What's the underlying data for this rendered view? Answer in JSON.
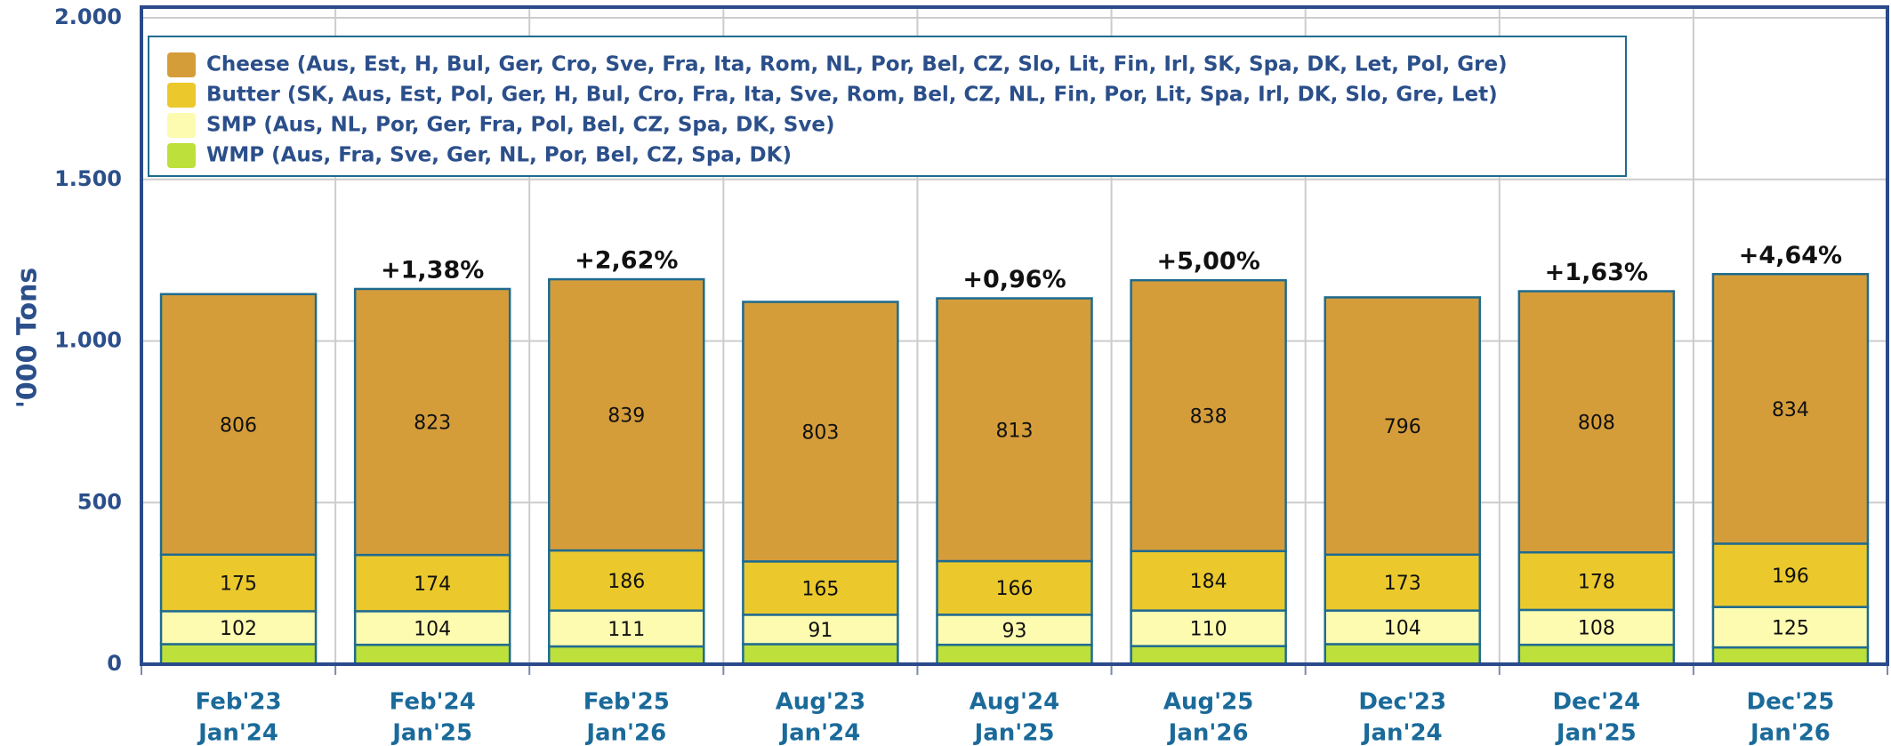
{
  "chart_data": {
    "type": "stacked_bar",
    "y_label": "'000 Tons",
    "categories": [
      [
        "Feb'23",
        "Jan'24"
      ],
      [
        "Feb'24",
        "Jan'25"
      ],
      [
        "Feb'25",
        "Jan'26"
      ],
      [
        "Aug'23",
        "Jan'24"
      ],
      [
        "Aug'24",
        "Jan'25"
      ],
      [
        "Aug'25",
        "Jan'26"
      ],
      [
        "Dec'23",
        "Jan'24"
      ],
      [
        "Dec'24",
        "Jan'25"
      ],
      [
        "Dec'25",
        "Jan'26"
      ]
    ],
    "series": [
      {
        "name": "WMP (Aus, Fra, Sve, Ger, NL, Por, Bel, CZ, Spa, DK)",
        "color": "#bde03a",
        "values": [
          62,
          60,
          55,
          62,
          60,
          56,
          62,
          60,
          52
        ]
      },
      {
        "name": "SMP (Aus, NL, Por, Ger, Fra, Pol, Bel, CZ, Spa, DK, Sve)",
        "color": "#fdfbb0",
        "values": [
          102,
          104,
          111,
          91,
          93,
          110,
          104,
          108,
          125
        ]
      },
      {
        "name": "Butter (SK, Aus, Est, Pol, Ger, H, Bul, Cro, Fra, Ita, Sve, Rom, Bel, CZ, NL, Fin, Por, Lit, Spa, Irl, DK, Slo, Gre, Let)",
        "color": "#ebc92d",
        "values": [
          175,
          174,
          186,
          165,
          166,
          184,
          173,
          178,
          196
        ]
      },
      {
        "name": "Cheese (Aus, Est, H, Bul, Ger, Cro, Sve, Fra, Ita, Rom, NL, Por, Bel, CZ, Slo, Lit, Fin, Irl, SK, Spa, DK, Let, Pol, Gre)",
        "color": "#d59d3a",
        "values": [
          806,
          823,
          839,
          803,
          813,
          838,
          796,
          808,
          834
        ]
      }
    ],
    "labeled_series": [
      1,
      2,
      3
    ],
    "growth_labels": [
      null,
      "+1,38%",
      "+2,62%",
      null,
      "+0,96%",
      "+5,00%",
      null,
      "+1,63%",
      "+4,64%"
    ],
    "ylim": [
      0,
      2000
    ],
    "yticks": [
      0,
      500,
      {
        "value": 1000,
        "label": "1.000"
      },
      {
        "value": 1500,
        "label": "1.500"
      },
      {
        "value": 2000,
        "label": "2.000"
      }
    ],
    "grid": true,
    "legend": "top-left"
  }
}
